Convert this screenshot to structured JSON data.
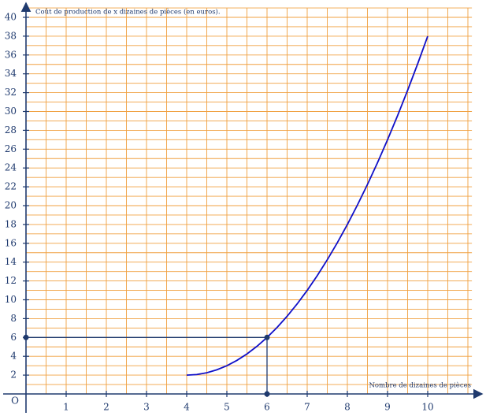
{
  "chart_data": {
    "type": "line",
    "y_label": "Coût de production de x dizaines de pièces (en euros).",
    "x_label": "Nombre de dizaines de pièces",
    "origin_label": "O",
    "x": [
      4,
      4.25,
      4.5,
      4.75,
      5,
      5.25,
      5.5,
      5.75,
      6,
      6.25,
      6.5,
      6.75,
      7,
      7.25,
      7.5,
      7.75,
      8,
      8.25,
      8.5,
      8.75,
      9,
      9.25,
      9.5,
      9.75,
      10
    ],
    "series": [
      {
        "color": "#1010c8",
        "values": [
          2,
          2.0625,
          2.25,
          2.5625,
          3,
          3.5625,
          4.25,
          5.0625,
          6,
          7.0625,
          8.25,
          9.5625,
          11,
          12.5625,
          14.25,
          16.0625,
          18,
          20.0625,
          22.25,
          24.5625,
          27,
          29.5625,
          32.25,
          35.0625,
          38
        ]
      }
    ],
    "guide_point": {
      "x": 6,
      "y": 6
    },
    "xlim": [
      0,
      11.1
    ],
    "ylim": [
      0,
      41
    ],
    "xticks": [
      1,
      2,
      3,
      4,
      5,
      6,
      7,
      8,
      9,
      10
    ],
    "yticks": [
      2,
      4,
      6,
      8,
      10,
      12,
      14,
      16,
      18,
      20,
      22,
      24,
      26,
      28,
      30,
      32,
      34,
      36,
      38,
      40
    ],
    "grid": true,
    "grid_color": "#f0a040",
    "xgrid": [
      0.5,
      1,
      1.5,
      2,
      2.5,
      3,
      3.5,
      4,
      4.5,
      5,
      5.5,
      6,
      6.5,
      7,
      7.5,
      8,
      8.5,
      9,
      9.5,
      10,
      10.5,
      11
    ],
    "ygrid": [
      1,
      2,
      3,
      4,
      5,
      6,
      7,
      8,
      9,
      10,
      11,
      12,
      13,
      14,
      15,
      16,
      17,
      18,
      19,
      20,
      21,
      22,
      23,
      24,
      25,
      26,
      27,
      28,
      29,
      30,
      31,
      32,
      33,
      34,
      35,
      36,
      37,
      38,
      39,
      40,
      41
    ]
  }
}
